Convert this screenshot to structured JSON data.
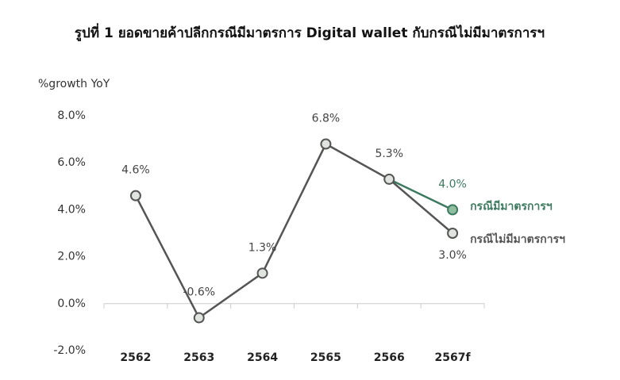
{
  "chart_data": {
    "type": "line",
    "title": "รูปที่ 1 ยอดขายค้าปลีกกรณีมีมาตรการ Digital wallet กับกรณีไม่มีมาตรการฯ",
    "y_label": "%growth YoY",
    "categories": [
      "2562",
      "2563",
      "2564",
      "2565",
      "2566",
      "2567f"
    ],
    "series": [
      {
        "name": "กรณีไม่มีมาตรการฯ",
        "color": "#555555",
        "values": [
          4.6,
          -0.6,
          1.3,
          6.8,
          5.3,
          3.0
        ],
        "value_labels": [
          "4.6%",
          "-0.6%",
          "1.3%",
          "6.8%",
          "5.3%",
          "3.0%"
        ]
      },
      {
        "name": "กรณีมีมาตรการฯ",
        "color": "#3d7a5f",
        "values": [
          null,
          null,
          null,
          null,
          5.3,
          4.0
        ],
        "value_labels": [
          null,
          null,
          null,
          null,
          null,
          "4.0%"
        ]
      }
    ],
    "ylim": [
      -2,
      8
    ],
    "yticks": [
      {
        "value": -2,
        "label": "-2.0%"
      },
      {
        "value": 0,
        "label": "0.0%"
      },
      {
        "value": 2,
        "label": "2.0%"
      },
      {
        "value": 4,
        "label": "4.0%"
      },
      {
        "value": 6,
        "label": "6.0%"
      },
      {
        "value": 8,
        "label": "8.0%"
      }
    ],
    "grid": false
  }
}
